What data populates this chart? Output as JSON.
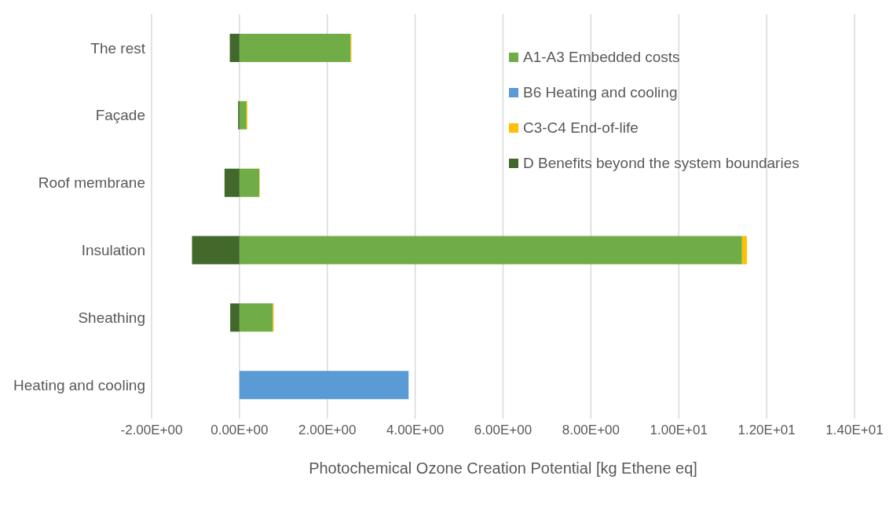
{
  "chart_data": {
    "type": "bar",
    "orientation": "horizontal",
    "stacked": true,
    "categories": [
      "The rest",
      "Façade",
      "Roof membrane",
      "Insulation",
      "Sheathing",
      "Heating and cooling"
    ],
    "series": [
      {
        "name": "A1-A3 Embedded costs",
        "color": "#70ad47",
        "values": [
          2.53,
          0.16,
          0.45,
          11.44,
          0.76,
          null
        ]
      },
      {
        "name": "B6 Heating and cooling",
        "color": "#5b9bd5",
        "values": [
          null,
          null,
          null,
          null,
          null,
          3.85
        ]
      },
      {
        "name": "C3-C4 End-of-life",
        "color": "#ffc000",
        "values": [
          0.02,
          0.02,
          0.01,
          0.11,
          0.02,
          null
        ]
      },
      {
        "name": "D Benefits beyond the system boundaries",
        "color": "#43682b",
        "values": [
          -0.22,
          -0.03,
          -0.34,
          -1.08,
          -0.21,
          null
        ]
      }
    ],
    "xlim": [
      -2,
      14
    ],
    "xticks": [
      {
        "value": -2,
        "label": "-2.00E+00"
      },
      {
        "value": 0,
        "label": "0.00E+00"
      },
      {
        "value": 2,
        "label": "2.00E+00"
      },
      {
        "value": 4,
        "label": "4.00E+00"
      },
      {
        "value": 6,
        "label": "6.00E+00"
      },
      {
        "value": 8,
        "label": "8.00E+00"
      },
      {
        "value": 10,
        "label": "1.00E+01"
      },
      {
        "value": 12,
        "label": "1.20E+01"
      },
      {
        "value": 14,
        "label": "1.40E+01"
      }
    ],
    "xlabel": "Photochemical Ozone Creation Potential [kg Ethene eq]",
    "grid": "x",
    "legend": "top right"
  }
}
